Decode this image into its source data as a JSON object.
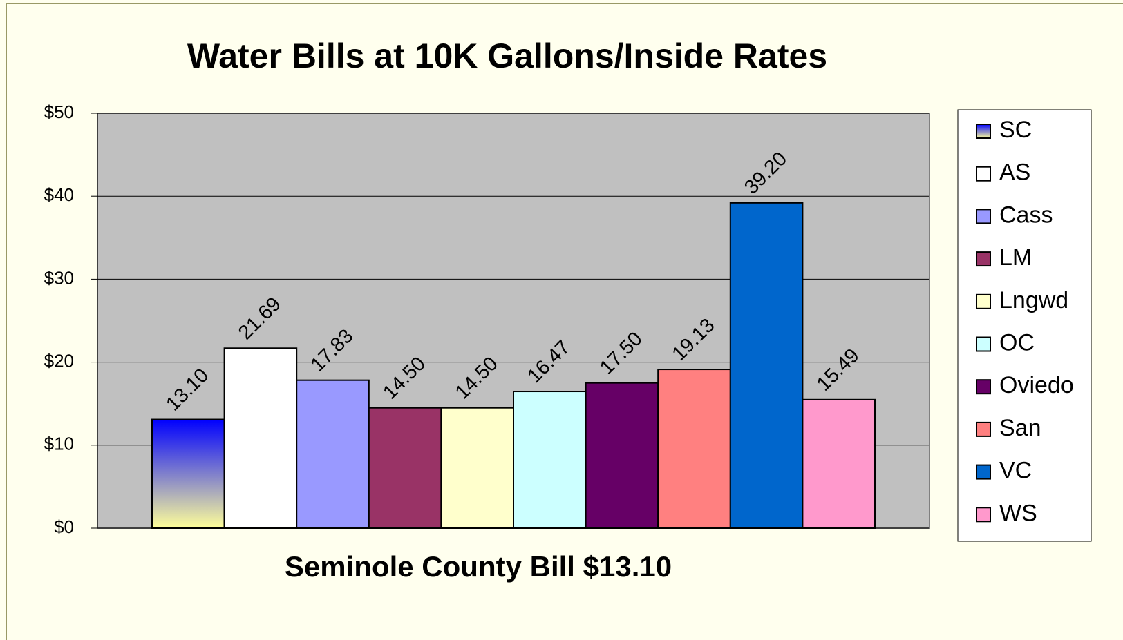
{
  "chart_data": {
    "type": "bar",
    "title": "Water Bills at 10K Gallons/Inside Rates",
    "x_label": "Seminole County Bill $13.10",
    "series": [
      {
        "name": "SC",
        "color": "#0000ff",
        "gradient": "#ffff99",
        "values": [
          13.1
        ],
        "value_labels": [
          "13.10"
        ]
      },
      {
        "name": "AS",
        "color": "#ffffff",
        "values": [
          21.69
        ]
      },
      {
        "name": "Cass",
        "color": "#9999ff",
        "values": [
          17.83
        ]
      },
      {
        "name": "LM",
        "color": "#993366",
        "values": [
          14.5
        ],
        "value_labels": [
          "14.50"
        ]
      },
      {
        "name": "Lngwd",
        "color": "#ffffcc",
        "values": [
          14.5
        ],
        "value_labels": [
          "14.50"
        ]
      },
      {
        "name": "OC",
        "color": "#ccffff",
        "values": [
          16.47
        ]
      },
      {
        "name": "Oviedo",
        "color": "#660066",
        "values": [
          17.5
        ],
        "value_labels": [
          "17.50"
        ]
      },
      {
        "name": "San",
        "color": "#ff8080",
        "values": [
          19.13
        ]
      },
      {
        "name": "VC",
        "color": "#0066cc",
        "values": [
          39.2
        ],
        "value_labels": [
          "39.20"
        ]
      },
      {
        "name": "WS",
        "color": "#ff99cc",
        "values": [
          15.49
        ]
      }
    ],
    "ylim": [
      0,
      50
    ],
    "yticks": [
      {
        "value": 0,
        "label": "$0"
      },
      {
        "value": 10,
        "label": "$10"
      },
      {
        "value": 20,
        "label": "$20"
      },
      {
        "value": 30,
        "label": "$30"
      },
      {
        "value": 40,
        "label": "$40"
      },
      {
        "value": 50,
        "label": "$50"
      }
    ],
    "grid": true,
    "legend": "right",
    "plot_background": "#c0c0c0"
  }
}
